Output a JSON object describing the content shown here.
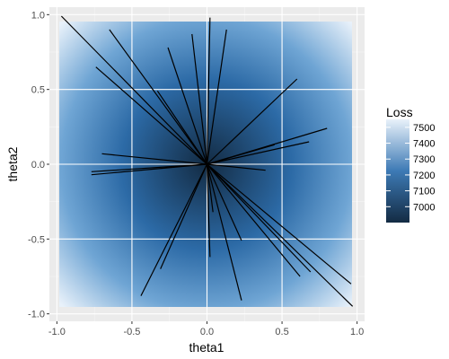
{
  "chart_data": {
    "type": "line",
    "xlabel": "theta1",
    "ylabel": "theta2",
    "xlim": [
      -1.05,
      1.05
    ],
    "ylim": [
      -1.05,
      1.05
    ],
    "x_ticks": [
      -1.0,
      -0.5,
      0.0,
      0.5,
      1.0
    ],
    "x_tick_labels": [
      "-1.0",
      "-0.5",
      "0.0",
      "0.5",
      "1.0"
    ],
    "y_ticks": [
      -1.0,
      -0.5,
      0.0,
      0.5,
      1.0
    ],
    "y_tick_labels": [
      "-1.0",
      "-0.5",
      "0.0",
      "0.5",
      "1.0"
    ],
    "grid": true,
    "background_fill": {
      "variable": "Loss",
      "min": 6900,
      "max": 7550,
      "low_color": "#132B43",
      "mid_color": "#3d7ab5",
      "high_color": "#e8f1fa"
    },
    "legend": {
      "title": "Loss",
      "placement": "right",
      "values": [
        7500,
        7400,
        7300,
        7200,
        7100,
        7000
      ],
      "labels": [
        "7500",
        "7400",
        "7300",
        "7200",
        "7100",
        "7000"
      ]
    },
    "origin": [
      0.0,
      0.0
    ],
    "segments": [
      {
        "x": -0.97,
        "y": 0.99
      },
      {
        "x": -0.65,
        "y": 0.9
      },
      {
        "x": -0.74,
        "y": 0.65
      },
      {
        "x": -0.33,
        "y": 0.49
      },
      {
        "x": -0.26,
        "y": 0.78
      },
      {
        "x": -0.1,
        "y": 0.87
      },
      {
        "x": 0.02,
        "y": 0.98
      },
      {
        "x": 0.13,
        "y": 0.9
      },
      {
        "x": 0.6,
        "y": 0.57
      },
      {
        "x": 0.8,
        "y": 0.24
      },
      {
        "x": 0.68,
        "y": 0.15
      },
      {
        "x": 0.45,
        "y": 0.13
      },
      {
        "x": 0.39,
        "y": -0.04
      },
      {
        "x": -0.7,
        "y": 0.07
      },
      {
        "x": -0.77,
        "y": -0.05
      },
      {
        "x": -0.77,
        "y": -0.07
      },
      {
        "x": 0.96,
        "y": -0.8
      },
      {
        "x": 0.97,
        "y": -0.95
      },
      {
        "x": 0.69,
        "y": -0.72
      },
      {
        "x": 0.62,
        "y": -0.75
      },
      {
        "x": 0.23,
        "y": -0.51
      },
      {
        "x": 0.04,
        "y": -0.32
      },
      {
        "x": 0.23,
        "y": -0.91
      },
      {
        "x": 0.02,
        "y": -0.62
      },
      {
        "x": -0.31,
        "y": -0.7
      },
      {
        "x": -0.44,
        "y": -0.88
      }
    ]
  }
}
